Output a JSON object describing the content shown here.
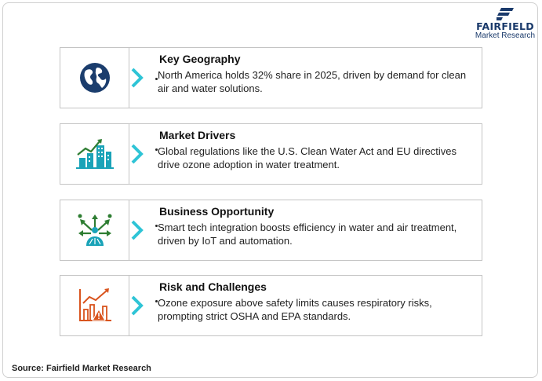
{
  "logo": {
    "brand": "FAIRFIELD",
    "sub": "Market Research",
    "icon": "fairfield-logo-mark",
    "color": "#1a3a6b"
  },
  "cards": [
    {
      "title": "Key Geography",
      "desc": "North America holds 32% share in 2025, driven by demand for clean air and water solutions.",
      "icon": "globe-icon"
    },
    {
      "title": "Market Drivers",
      "desc": "Global regulations like the U.S. Clean Water Act and EU directives drive ozone adoption in water treatment.",
      "icon": "growth-buildings-icon"
    },
    {
      "title": "Business Opportunity",
      "desc": "Smart tech integration boosts efficiency in water and air treatment, driven by IoT and automation.",
      "icon": "opportunity-arrows-icon"
    },
    {
      "title": "Risk and Challenges",
      "desc": "Ozone exposure above safety limits causes respiratory risks, prompting strict OSHA and EPA standards.",
      "icon": "risk-chart-icon"
    }
  ],
  "source": {
    "text": "Source: Fairfield Market Research"
  },
  "colors": {
    "chevron": "#2ec4d6",
    "globe": "#1b3d6d",
    "green": "#2e7d32",
    "teal": "#1aa3b8",
    "risk": "#d9541e"
  }
}
